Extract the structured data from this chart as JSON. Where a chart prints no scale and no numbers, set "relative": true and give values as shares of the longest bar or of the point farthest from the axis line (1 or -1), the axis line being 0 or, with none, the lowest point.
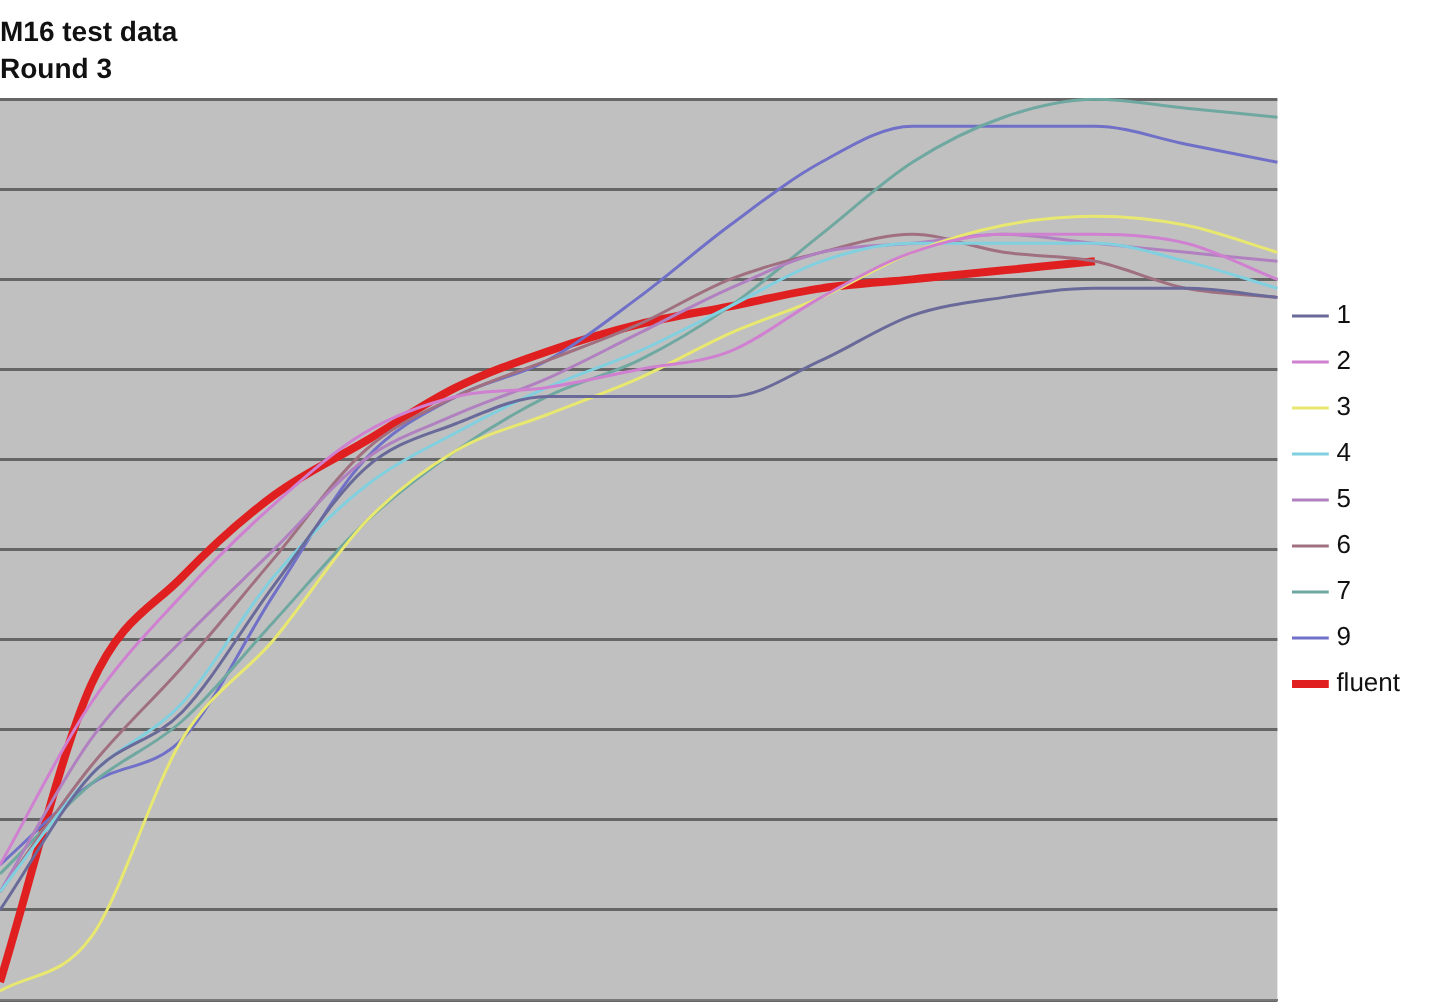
{
  "chart_data": {
    "type": "line",
    "title": "M16 test data",
    "subtitle": "Round 3",
    "relative": true,
    "grid": "y",
    "legend": "right",
    "marker": "none",
    "line_style": "solid",
    "categories": [
      null,
      null,
      null,
      null,
      null,
      null,
      null,
      null,
      null,
      null,
      null,
      null,
      null,
      null,
      null
    ],
    "series": [
      {
        "name": "1",
        "color": "#6a6a9a",
        "values": [
          0.1,
          0.25,
          0.32,
          0.46,
          0.59,
          0.64,
          0.67,
          0.67,
          0.67,
          0.71,
          0.76,
          0.78,
          0.79,
          0.79,
          0.78
        ]
      },
      {
        "name": "2",
        "color": "#d080d0",
        "values": [
          0.15,
          0.33,
          0.45,
          0.55,
          0.63,
          0.67,
          0.68,
          0.7,
          0.72,
          0.78,
          0.83,
          0.85,
          0.85,
          0.84,
          0.8
        ]
      },
      {
        "name": "3",
        "color": "#e8e870",
        "values": [
          0.01,
          0.07,
          0.29,
          0.4,
          0.53,
          0.61,
          0.65,
          0.69,
          0.74,
          0.78,
          0.83,
          0.86,
          0.87,
          0.86,
          0.83
        ]
      },
      {
        "name": "4",
        "color": "#80d0e0",
        "values": [
          0.12,
          0.25,
          0.33,
          0.47,
          0.57,
          0.63,
          0.68,
          0.72,
          0.77,
          0.82,
          0.84,
          0.84,
          0.84,
          0.82,
          0.79
        ]
      },
      {
        "name": "5",
        "color": "#b080c0",
        "values": [
          0.12,
          0.29,
          0.4,
          0.5,
          0.6,
          0.65,
          0.69,
          0.74,
          0.79,
          0.83,
          0.84,
          0.85,
          0.84,
          0.83,
          0.82
        ]
      },
      {
        "name": "6",
        "color": "#a07080",
        "values": [
          0.12,
          0.26,
          0.37,
          0.49,
          0.61,
          0.67,
          0.71,
          0.75,
          0.8,
          0.83,
          0.85,
          0.83,
          0.82,
          0.79,
          0.78
        ]
      },
      {
        "name": "7",
        "color": "#6fa8a0",
        "values": [
          0.14,
          0.24,
          0.31,
          0.42,
          0.53,
          0.61,
          0.67,
          0.71,
          0.77,
          0.85,
          0.93,
          0.98,
          1,
          0.99,
          0.98
        ]
      },
      {
        "name": "9",
        "color": "#7070c8",
        "values": [
          0.15,
          0.24,
          0.29,
          0.45,
          0.6,
          0.67,
          0.71,
          0.78,
          0.86,
          0.93,
          0.97,
          0.97,
          0.97,
          0.95,
          0.93
        ]
      },
      {
        "name": "fluent",
        "color": "#e02020",
        "values": [
          0.02,
          0.35,
          0.47,
          0.56,
          0.62,
          0.68,
          0.72,
          0.75,
          0.77,
          0.79,
          0.8,
          0.81,
          0.82,
          null,
          null
        ]
      }
    ]
  }
}
